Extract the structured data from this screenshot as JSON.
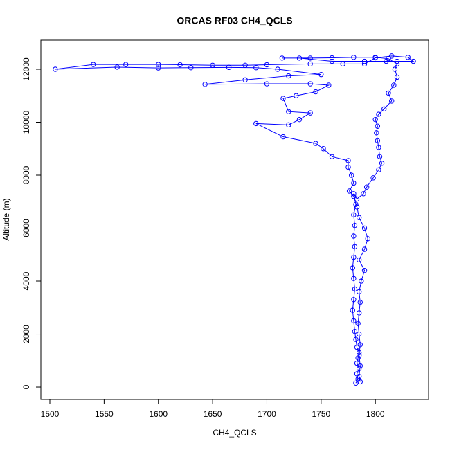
{
  "chart_data": {
    "type": "line",
    "title": "ORCAS RF03 CH4_QCLS",
    "x_label": "CH4_QCLS",
    "y_label": "Altitude (m)",
    "color": "#0000ff",
    "markers": true,
    "xlim": [
      1491.7,
      1849
    ],
    "ylim": [
      -470,
      13098
    ],
    "xticks": [
      1500,
      1550,
      1600,
      1650,
      1700,
      1750,
      1800
    ],
    "yticks": [
      0,
      2000,
      4000,
      6000,
      8000,
      10000,
      12000
    ],
    "x": [
      1782,
      1784,
      1783,
      1785,
      1783,
      1784,
      1785,
      1783,
      1782,
      1781,
      1780,
      1779,
      1780,
      1781,
      1780,
      1779,
      1780,
      1781,
      1780,
      1781,
      1780,
      1782,
      1780,
      1783,
      1789,
      1792,
      1798,
      1803,
      1806,
      1804,
      1803,
      1802,
      1801,
      1802,
      1800,
      1803,
      1808,
      1815,
      1812,
      1817,
      1820,
      1818,
      1820,
      1812,
      1800,
      1780,
      1760,
      1740,
      1714,
      1730,
      1760,
      1790,
      1810,
      1820,
      1835,
      1830,
      1815,
      1800,
      1790,
      1770,
      1740,
      1700,
      1680,
      1650,
      1620,
      1600,
      1570,
      1540,
      1505,
      1562,
      1600,
      1630,
      1665,
      1690,
      1710,
      1750,
      1720,
      1680,
      1643,
      1700,
      1740,
      1757,
      1745,
      1727,
      1715,
      1720,
      1740,
      1730,
      1720,
      1690,
      1715,
      1745,
      1752,
      1760,
      1775,
      1775,
      1778,
      1780,
      1776,
      1780,
      1783,
      1785,
      1790,
      1793,
      1790,
      1785,
      1790,
      1787,
      1785,
      1786,
      1785,
      1784,
      1785,
      1786,
      1785,
      1786,
      1785,
      1786
    ],
    "values": [
      150,
      300,
      500,
      700,
      900,
      1100,
      1300,
      1500,
      1800,
      2100,
      2500,
      2900,
      3300,
      3700,
      4100,
      4500,
      4900,
      5300,
      5700,
      6100,
      6500,
      6900,
      7300,
      7100,
      7300,
      7550,
      7900,
      8200,
      8450,
      8700,
      9050,
      9300,
      9600,
      9850,
      10100,
      10300,
      10500,
      10800,
      11100,
      11400,
      11700,
      12000,
      12200,
      12400,
      12450,
      12450,
      12430,
      12420,
      12420,
      12420,
      12300,
      12300,
      12300,
      12300,
      12300,
      12450,
      12500,
      12430,
      12200,
      12200,
      12200,
      12170,
      12150,
      12150,
      12170,
      12180,
      12180,
      12180,
      12000,
      12080,
      12050,
      12060,
      12070,
      12060,
      12000,
      11800,
      11750,
      11600,
      11430,
      11450,
      11450,
      11400,
      11150,
      11000,
      10900,
      10400,
      10350,
      10100,
      9900,
      9950,
      9450,
      9200,
      9000,
      8700,
      8550,
      8300,
      8000,
      7700,
      7400,
      7200,
      6800,
      6400,
      6000,
      5600,
      5200,
      4800,
      4400,
      4000,
      3600,
      3200,
      2800,
      2400,
      2000,
      1600,
      1200,
      800,
      400,
      200
    ]
  }
}
